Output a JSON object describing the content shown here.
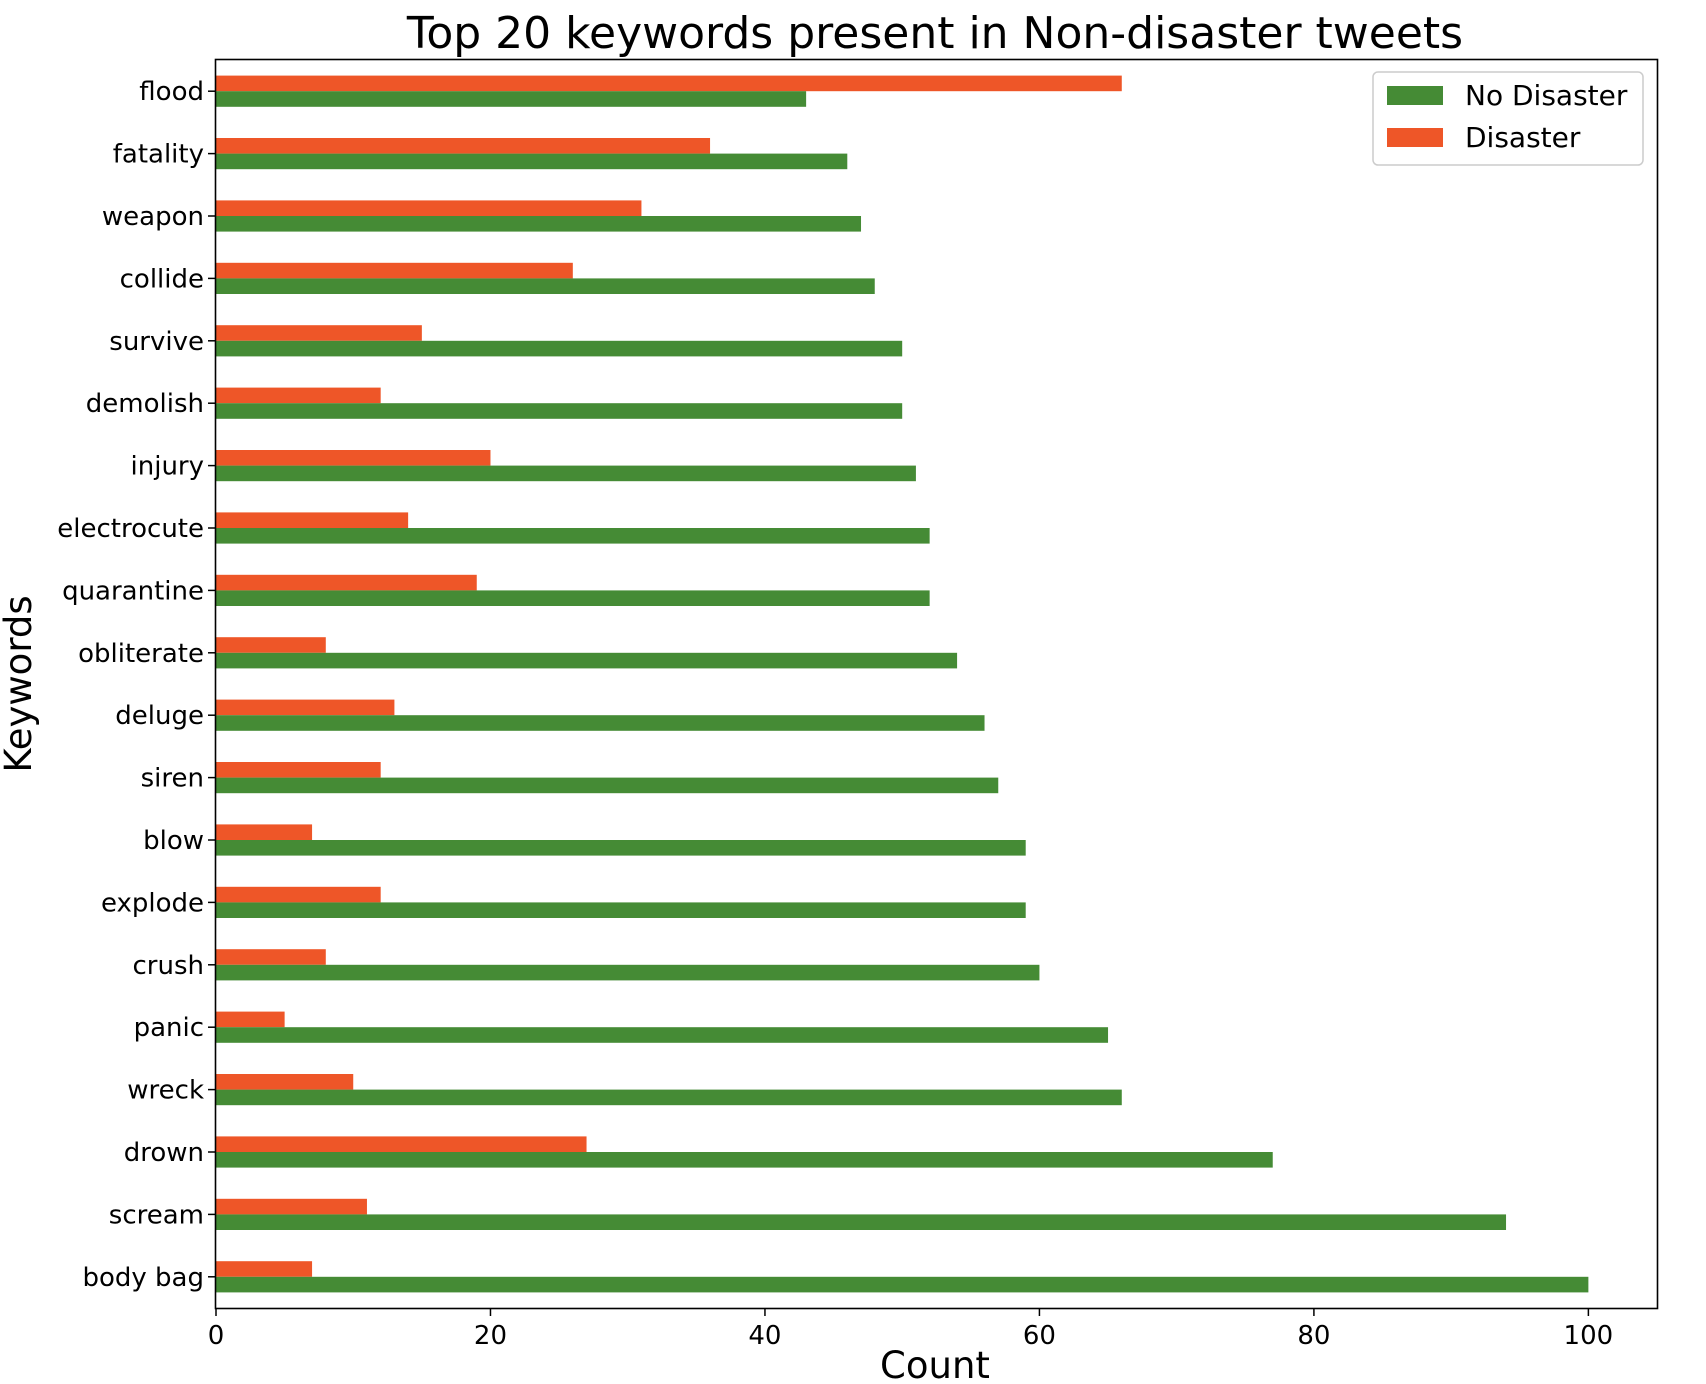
{
  "chart_data": {
    "type": "bar",
    "orientation": "horizontal",
    "title": "Top 20 keywords present in Non-disaster tweets",
    "xlabel": "Count",
    "ylabel": "Keywords",
    "xlim": [
      0,
      105
    ],
    "xticks": [
      0,
      20,
      40,
      60,
      80,
      100
    ],
    "grid": false,
    "legend_position": "top-right",
    "categories": [
      "flood",
      "fatality",
      "weapon",
      "collide",
      "survive",
      "demolish",
      "injury",
      "electrocute",
      "quarantine",
      "obliterate",
      "deluge",
      "siren",
      "blow",
      "explode",
      "crush",
      "panic",
      "wreck",
      "drown",
      "scream",
      "body bag"
    ],
    "series": [
      {
        "name": "No Disaster",
        "color": "#458b35",
        "values": [
          43,
          46,
          47,
          48,
          50,
          50,
          51,
          52,
          52,
          54,
          56,
          57,
          59,
          59,
          60,
          65,
          66,
          77,
          94,
          100
        ]
      },
      {
        "name": "Disaster",
        "color": "#ee5628",
        "values": [
          66,
          36,
          31,
          26,
          15,
          12,
          20,
          14,
          19,
          8,
          13,
          12,
          7,
          12,
          8,
          5,
          10,
          27,
          11,
          7
        ]
      }
    ]
  }
}
